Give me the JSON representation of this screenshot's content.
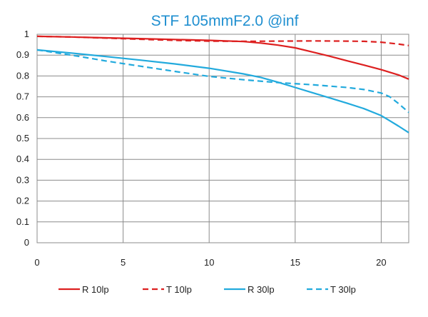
{
  "chart_data": {
    "type": "line",
    "title": "STF 105mmF2.0    @inf",
    "title_color": "#1f8fd0",
    "xlabel": "",
    "ylabel": "",
    "xlim": [
      0,
      21.6
    ],
    "ylim": [
      0,
      1
    ],
    "x_ticks": [
      "0",
      "5",
      "10",
      "15",
      "20"
    ],
    "y_ticks": [
      "0",
      "0.1",
      "0.2",
      "0.3",
      "0.4",
      "0.5",
      "0.6",
      "0.7",
      "0.8",
      "0.9",
      "1"
    ],
    "grid": true,
    "legend_position": "bottom",
    "series": [
      {
        "name": "R 10lp",
        "color": "#dd2020",
        "dash": "solid",
        "x": [
          0,
          2,
          4,
          6,
          8,
          10,
          12,
          13,
          14,
          15,
          16,
          17,
          18,
          19,
          20,
          21,
          21.6
        ],
        "y": [
          0.99,
          0.987,
          0.983,
          0.979,
          0.975,
          0.971,
          0.965,
          0.958,
          0.948,
          0.935,
          0.915,
          0.895,
          0.873,
          0.852,
          0.83,
          0.805,
          0.785
        ]
      },
      {
        "name": "T 10lp",
        "color": "#dd2020",
        "dash": "dashed",
        "x": [
          0,
          2,
          4,
          6,
          8,
          10,
          12,
          14,
          16,
          18,
          19,
          20,
          21,
          21.6
        ],
        "y": [
          0.99,
          0.987,
          0.982,
          0.976,
          0.971,
          0.967,
          0.966,
          0.967,
          0.968,
          0.967,
          0.966,
          0.962,
          0.953,
          0.946
        ]
      },
      {
        "name": "R 30lp",
        "color": "#22aadd",
        "dash": "solid",
        "x": [
          0,
          2,
          4,
          6,
          8,
          10,
          12,
          13,
          14,
          15,
          16,
          17,
          18,
          19,
          20,
          20.5,
          21,
          21.6
        ],
        "y": [
          0.925,
          0.91,
          0.893,
          0.876,
          0.858,
          0.837,
          0.81,
          0.793,
          0.77,
          0.745,
          0.72,
          0.695,
          0.67,
          0.643,
          0.61,
          0.585,
          0.56,
          0.528
        ]
      },
      {
        "name": "T 30lp",
        "color": "#22aadd",
        "dash": "dashed",
        "x": [
          0,
          2,
          4,
          6,
          8,
          10,
          12,
          14,
          16,
          18,
          19,
          20,
          20.5,
          21,
          21.6
        ],
        "y": [
          0.925,
          0.9,
          0.872,
          0.847,
          0.822,
          0.798,
          0.782,
          0.768,
          0.758,
          0.745,
          0.735,
          0.718,
          0.7,
          0.668,
          0.625
        ]
      }
    ]
  }
}
